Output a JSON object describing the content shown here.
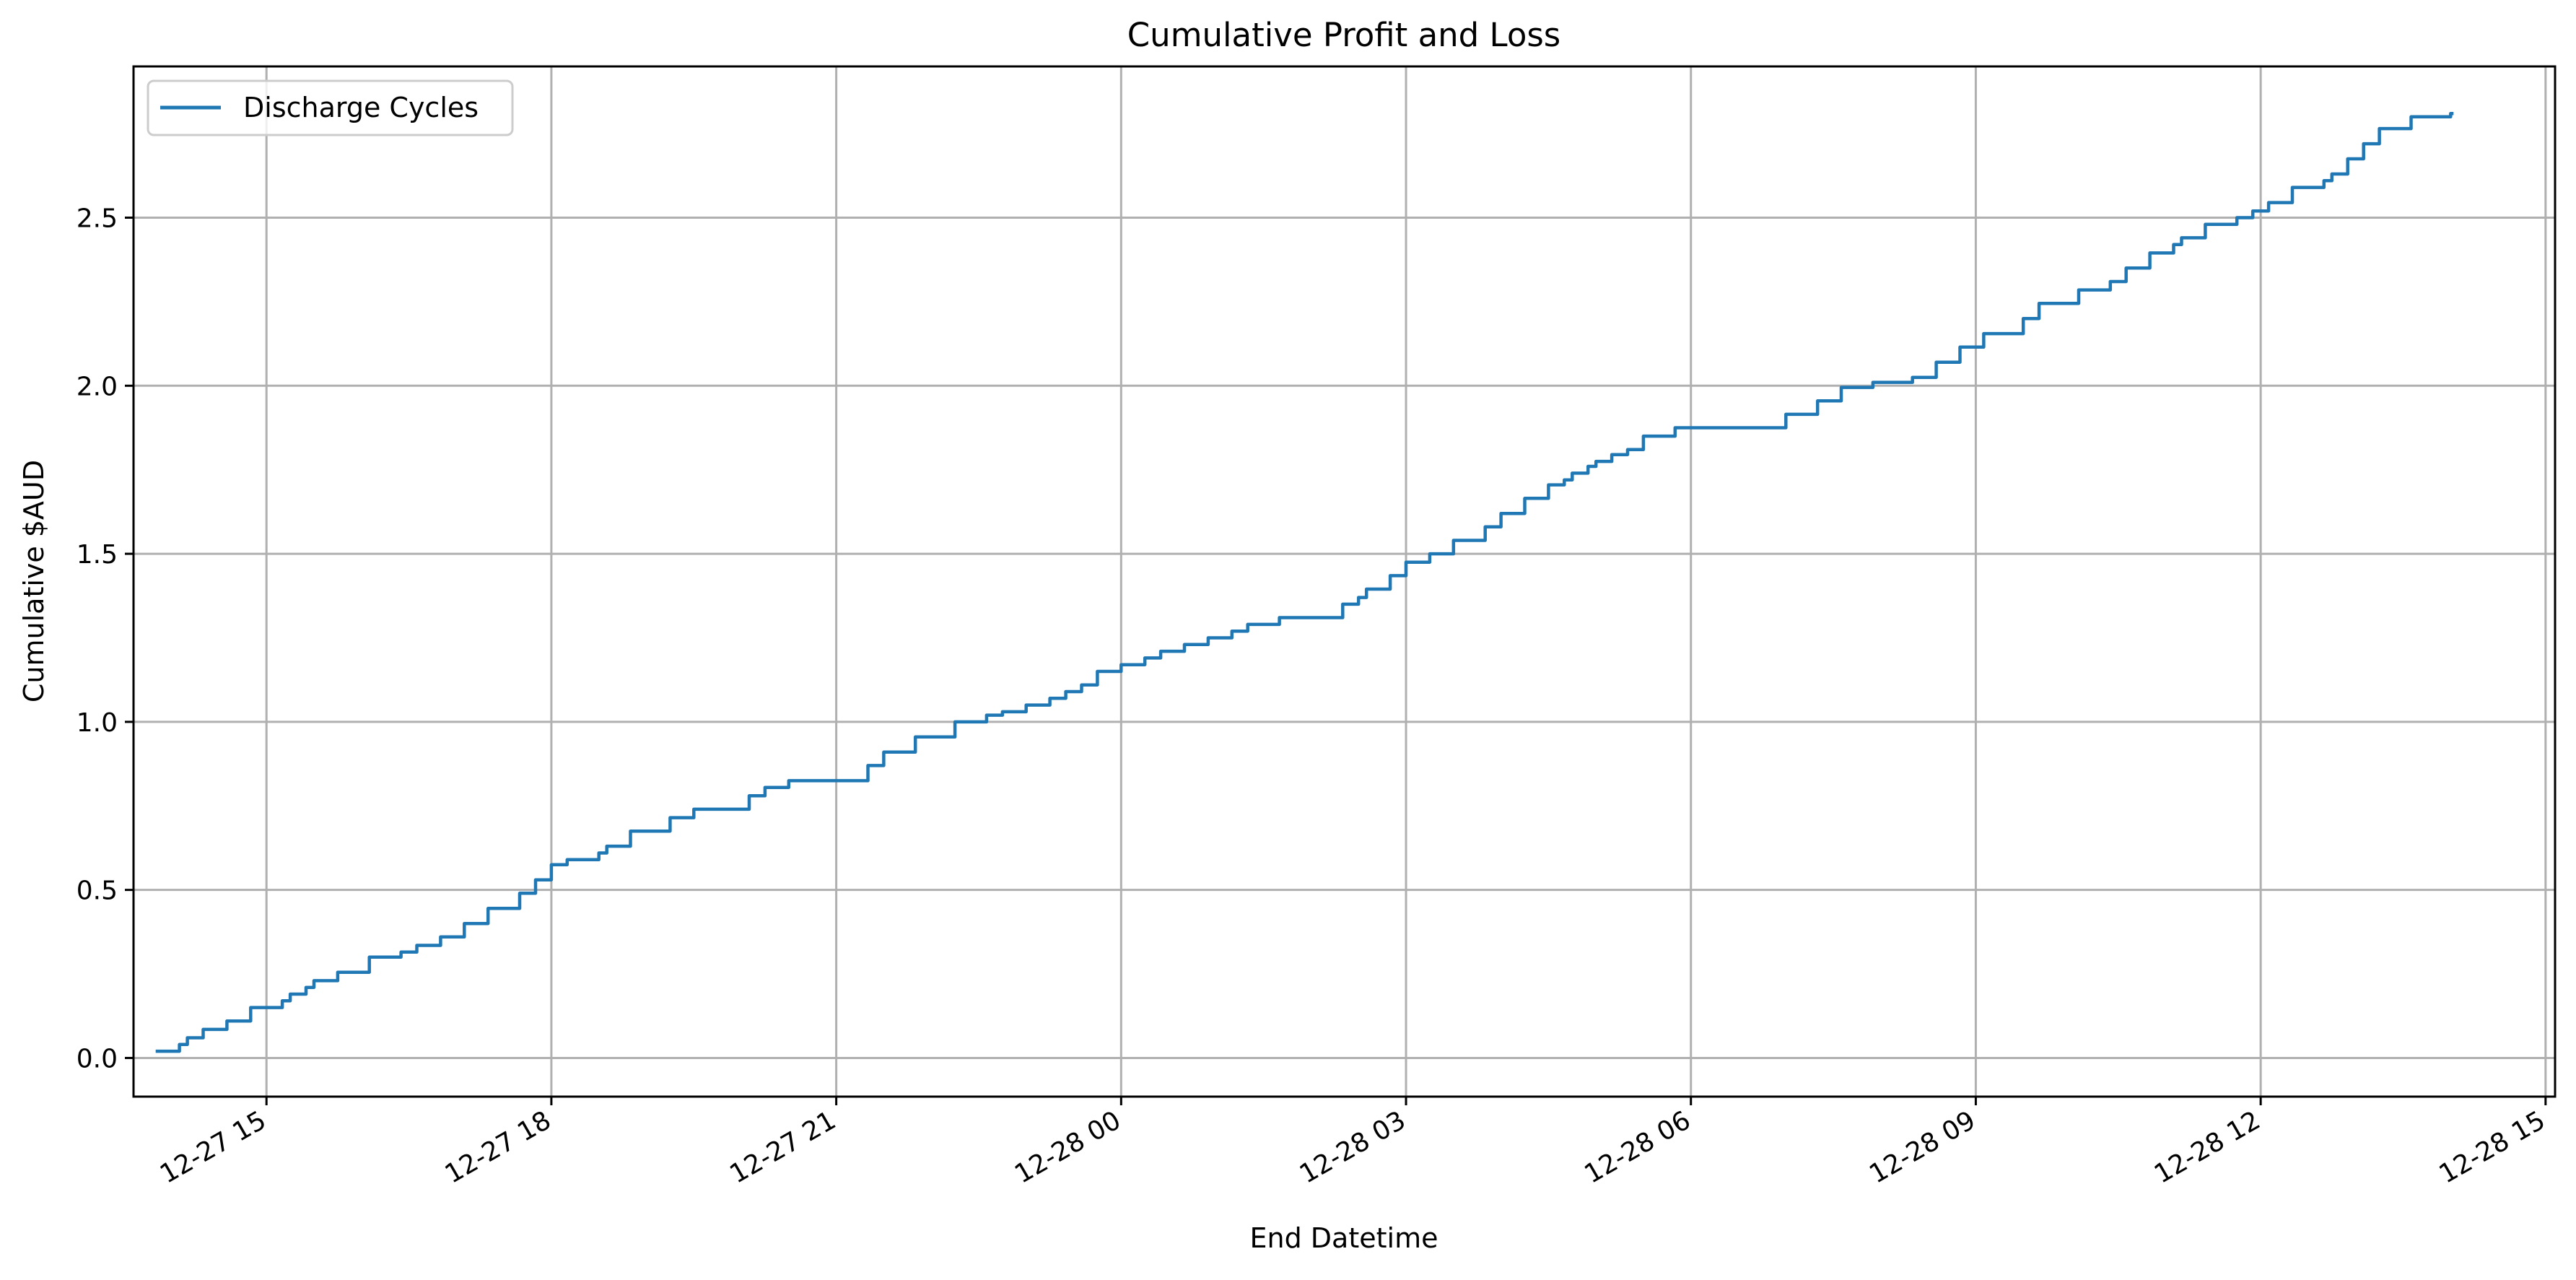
{
  "chart_data": {
    "type": "line",
    "title": "Cumulative Profit and Loss",
    "xlabel": "End Datetime",
    "ylabel": "Cumulative $AUD",
    "x_ticks": [
      "12-27 15",
      "12-27 18",
      "12-27 21",
      "12-28 00",
      "12-28 03",
      "12-28 06",
      "12-28 09",
      "12-28 12",
      "12-28 15"
    ],
    "y_ticks": [
      "0.0",
      "0.5",
      "1.0",
      "1.5",
      "2.0",
      "2.5"
    ],
    "xlim": [
      "2025-12-27T13:36",
      "2025-12-28T15:06"
    ],
    "ylim": [
      -0.115,
      2.95
    ],
    "grid": true,
    "legend_position": "upper left",
    "step_style": "post",
    "series": [
      {
        "name": "Discharge Cycles",
        "color": "#1f77b4",
        "points": [
          [
            "2025-12-27T13:50",
            0.02
          ],
          [
            "2025-12-27T14:05",
            0.04
          ],
          [
            "2025-12-27T14:10",
            0.06
          ],
          [
            "2025-12-27T14:20",
            0.085
          ],
          [
            "2025-12-27T14:35",
            0.11
          ],
          [
            "2025-12-27T14:50",
            0.15
          ],
          [
            "2025-12-27T15:10",
            0.17
          ],
          [
            "2025-12-27T15:15",
            0.19
          ],
          [
            "2025-12-27T15:25",
            0.21
          ],
          [
            "2025-12-27T15:30",
            0.23
          ],
          [
            "2025-12-27T15:45",
            0.255
          ],
          [
            "2025-12-27T16:05",
            0.3
          ],
          [
            "2025-12-27T16:25",
            0.315
          ],
          [
            "2025-12-27T16:35",
            0.335
          ],
          [
            "2025-12-27T16:50",
            0.36
          ],
          [
            "2025-12-27T17:05",
            0.4
          ],
          [
            "2025-12-27T17:20",
            0.445
          ],
          [
            "2025-12-27T17:40",
            0.49
          ],
          [
            "2025-12-27T17:50",
            0.53
          ],
          [
            "2025-12-27T18:00",
            0.575
          ],
          [
            "2025-12-27T18:10",
            0.59
          ],
          [
            "2025-12-27T18:30",
            0.61
          ],
          [
            "2025-12-27T18:35",
            0.63
          ],
          [
            "2025-12-27T18:50",
            0.675
          ],
          [
            "2025-12-27T19:15",
            0.715
          ],
          [
            "2025-12-27T19:30",
            0.74
          ],
          [
            "2025-12-27T20:05",
            0.78
          ],
          [
            "2025-12-27T20:15",
            0.805
          ],
          [
            "2025-12-27T20:30",
            0.825
          ],
          [
            "2025-12-27T21:20",
            0.87
          ],
          [
            "2025-12-27T21:30",
            0.91
          ],
          [
            "2025-12-27T21:50",
            0.955
          ],
          [
            "2025-12-27T22:15",
            1.0
          ],
          [
            "2025-12-27T22:35",
            1.02
          ],
          [
            "2025-12-27T22:45",
            1.03
          ],
          [
            "2025-12-27T23:00",
            1.05
          ],
          [
            "2025-12-27T23:15",
            1.07
          ],
          [
            "2025-12-27T23:25",
            1.09
          ],
          [
            "2025-12-27T23:35",
            1.11
          ],
          [
            "2025-12-27T23:45",
            1.15
          ],
          [
            "2025-12-28T00:00",
            1.17
          ],
          [
            "2025-12-28T00:15",
            1.19
          ],
          [
            "2025-12-28T00:25",
            1.21
          ],
          [
            "2025-12-28T00:40",
            1.23
          ],
          [
            "2025-12-28T00:55",
            1.25
          ],
          [
            "2025-12-28T01:10",
            1.27
          ],
          [
            "2025-12-28T01:20",
            1.29
          ],
          [
            "2025-12-28T01:40",
            1.31
          ],
          [
            "2025-12-28T02:20",
            1.35
          ],
          [
            "2025-12-28T02:30",
            1.37
          ],
          [
            "2025-12-28T02:35",
            1.395
          ],
          [
            "2025-12-28T02:50",
            1.435
          ],
          [
            "2025-12-28T03:00",
            1.475
          ],
          [
            "2025-12-28T03:15",
            1.5
          ],
          [
            "2025-12-28T03:30",
            1.54
          ],
          [
            "2025-12-28T03:50",
            1.58
          ],
          [
            "2025-12-28T04:00",
            1.62
          ],
          [
            "2025-12-28T04:15",
            1.665
          ],
          [
            "2025-12-28T04:30",
            1.705
          ],
          [
            "2025-12-28T04:40",
            1.72
          ],
          [
            "2025-12-28T04:45",
            1.74
          ],
          [
            "2025-12-28T04:55",
            1.76
          ],
          [
            "2025-12-28T05:00",
            1.775
          ],
          [
            "2025-12-28T05:10",
            1.795
          ],
          [
            "2025-12-28T05:20",
            1.81
          ],
          [
            "2025-12-28T05:30",
            1.85
          ],
          [
            "2025-12-28T05:50",
            1.875
          ],
          [
            "2025-12-28T07:00",
            1.915
          ],
          [
            "2025-12-28T07:20",
            1.955
          ],
          [
            "2025-12-28T07:35",
            1.995
          ],
          [
            "2025-12-28T07:55",
            2.01
          ],
          [
            "2025-12-28T08:20",
            2.025
          ],
          [
            "2025-12-28T08:35",
            2.07
          ],
          [
            "2025-12-28T08:50",
            2.115
          ],
          [
            "2025-12-28T09:05",
            2.155
          ],
          [
            "2025-12-28T09:30",
            2.2
          ],
          [
            "2025-12-28T09:40",
            2.245
          ],
          [
            "2025-12-28T10:05",
            2.285
          ],
          [
            "2025-12-28T10:25",
            2.31
          ],
          [
            "2025-12-28T10:35",
            2.35
          ],
          [
            "2025-12-28T10:50",
            2.395
          ],
          [
            "2025-12-28T11:05",
            2.42
          ],
          [
            "2025-12-28T11:10",
            2.44
          ],
          [
            "2025-12-28T11:25",
            2.48
          ],
          [
            "2025-12-28T11:45",
            2.5
          ],
          [
            "2025-12-28T11:55",
            2.52
          ],
          [
            "2025-12-28T12:05",
            2.545
          ],
          [
            "2025-12-28T12:20",
            2.59
          ],
          [
            "2025-12-28T12:40",
            2.61
          ],
          [
            "2025-12-28T12:45",
            2.63
          ],
          [
            "2025-12-28T12:55",
            2.675
          ],
          [
            "2025-12-28T13:05",
            2.72
          ],
          [
            "2025-12-28T13:15",
            2.765
          ],
          [
            "2025-12-28T13:35",
            2.8
          ],
          [
            "2025-12-28T14:00",
            2.81
          ]
        ]
      }
    ]
  }
}
